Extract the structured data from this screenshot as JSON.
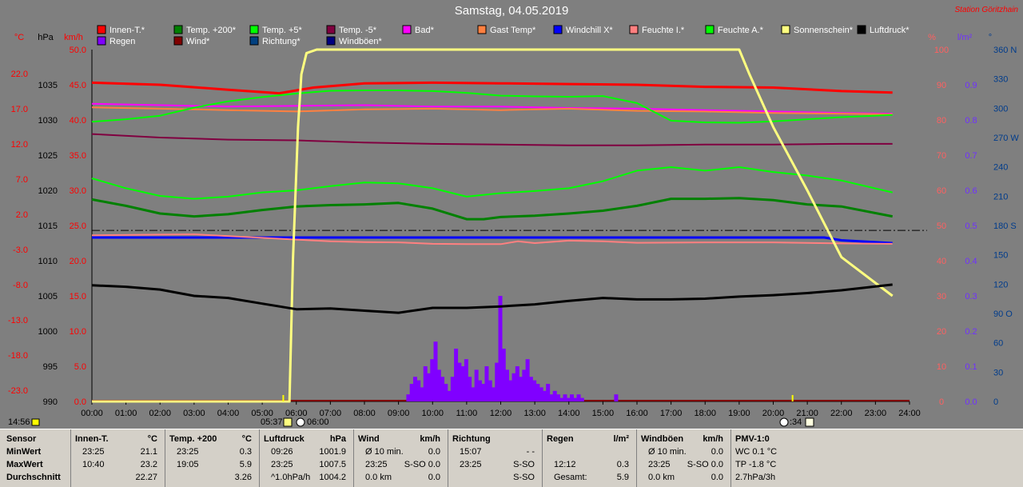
{
  "title": "Samstag, 04.05.2019",
  "station": "Station Göritzhain",
  "start_time": "14:56",
  "chart_data": {
    "type": "line",
    "x_ticks": [
      "00:00",
      "01:00",
      "02:00",
      "03:00",
      "04:00",
      "05:00",
      "06:00",
      "07:00",
      "08:00",
      "09:00",
      "10:00",
      "11:00",
      "12:00",
      "13:00",
      "14:00",
      "15:00",
      "16:00",
      "17:00",
      "18:00",
      "19:00",
      "20:00",
      "21:00",
      "22:00",
      "23:00",
      "24:00"
    ],
    "xlim": [
      0,
      24
    ],
    "grid": false,
    "legend_position": "top",
    "axes_left": [
      {
        "unit": "°C",
        "color": "#ff0000",
        "ticks": [
          "22.0",
          "17.0",
          "12.0",
          "7.0",
          "2.0",
          "-3.0",
          "-8.0",
          "-13.0",
          "-18.0",
          "-23.0"
        ]
      },
      {
        "unit": "hPa",
        "color": "#000000",
        "ticks": [
          "1035",
          "1030",
          "1025",
          "1020",
          "1015",
          "1010",
          "1005",
          "1000",
          "995",
          "990"
        ]
      },
      {
        "unit": "km/h",
        "color": "#ff0000",
        "ticks": [
          "50.0",
          "45.0",
          "40.0",
          "35.0",
          "30.0",
          "25.0",
          "20.0",
          "15.0",
          "10.0",
          "5.0",
          "0.0"
        ]
      }
    ],
    "axes_right": [
      {
        "unit": "%",
        "color": "#ff6060",
        "ticks": [
          "100",
          "90",
          "80",
          "70",
          "60",
          "50",
          "40",
          "30",
          "20",
          "10",
          "0"
        ]
      },
      {
        "unit": "l/m²",
        "color": "#7030ff",
        "ticks": [
          "0.9",
          "0.8",
          "0.7",
          "0.6",
          "0.5",
          "0.4",
          "0.3",
          "0.2",
          "0.1",
          "0.0"
        ]
      },
      {
        "unit": "°",
        "color": "#003c8c",
        "ticks": [
          "360 N",
          "330",
          "300",
          "270 W",
          "240",
          "210",
          "180 S",
          "150",
          "120",
          "90 O",
          "60",
          "30",
          "0"
        ]
      }
    ],
    "legend": [
      {
        "label": "Innen-T.*",
        "color": "#ff0000"
      },
      {
        "label": "Temp. +200*",
        "color": "#008000"
      },
      {
        "label": "Temp. +5*",
        "color": "#00ff00"
      },
      {
        "label": "Temp. -5*",
        "color": "#800040"
      },
      {
        "label": "Bad*",
        "color": "#ff00ff"
      },
      {
        "label": "Gast Temp*",
        "color": "#ff8040"
      },
      {
        "label": "Windchill X*",
        "color": "#0000ff"
      },
      {
        "label": "Feuchte I.*",
        "color": "#ff8080"
      },
      {
        "label": "Feuchte A.*",
        "color": "#00ff00"
      },
      {
        "label": "Sonnenschein*",
        "color": "#ffff80"
      },
      {
        "label": "Luftdruck*",
        "color": "#000000"
      },
      {
        "label": "Regen",
        "color": "#8000ff"
      },
      {
        "label": "Wind*",
        "color": "#800000"
      },
      {
        "label": "Richtung*",
        "color": "#004080"
      },
      {
        "label": "Windböen*",
        "color": "#000080"
      }
    ],
    "series": [
      {
        "name": "Innen-T.*",
        "axis": "°C",
        "color": "#ff0000",
        "x": [
          0,
          2,
          4,
          5.5,
          6.5,
          8,
          10,
          12,
          14,
          16,
          18,
          20,
          22,
          23.5
        ],
        "y": [
          22.3,
          22.0,
          21.3,
          20.8,
          21.6,
          22.2,
          22.3,
          22.2,
          22.1,
          22.0,
          21.7,
          21.6,
          21.1,
          20.9
        ]
      },
      {
        "name": "Temp. +200*",
        "axis": "°C",
        "color": "#008000",
        "x": [
          0,
          1,
          2,
          3,
          4,
          5,
          6,
          7,
          8,
          9,
          10,
          11,
          11.5,
          12,
          13,
          14,
          15,
          16,
          17,
          18,
          19,
          20,
          21,
          22,
          23.5
        ],
        "y": [
          5.7,
          4.8,
          3.7,
          3.3,
          3.6,
          4.2,
          4.7,
          4.9,
          5.0,
          5.2,
          4.4,
          2.9,
          2.9,
          3.2,
          3.4,
          3.7,
          4.1,
          4.8,
          5.8,
          5.8,
          5.9,
          5.6,
          5.0,
          4.7,
          3.3
        ]
      },
      {
        "name": "Temp. +5*",
        "axis": "°C",
        "color": "#00ff00",
        "x": [
          0,
          1,
          2,
          3,
          4,
          5,
          6,
          7,
          8,
          9,
          10,
          11,
          12,
          13,
          14,
          15,
          16,
          17,
          18,
          19,
          20,
          21,
          22,
          23.5
        ],
        "y": [
          8.7,
          7.3,
          6.2,
          5.8,
          6.1,
          6.7,
          7.0,
          7.6,
          8.1,
          8.0,
          7.3,
          6.1,
          6.6,
          6.9,
          7.3,
          8.3,
          9.8,
          10.3,
          9.8,
          10.3,
          9.6,
          9.1,
          8.4,
          6.7
        ]
      },
      {
        "name": "Temp. -5*",
        "axis": "°C",
        "color": "#800040",
        "x": [
          0,
          2,
          4,
          6,
          8,
          10,
          12,
          14,
          16,
          18,
          20,
          22,
          23.5
        ],
        "y": [
          15.0,
          14.5,
          14.2,
          14.1,
          13.8,
          13.6,
          13.5,
          13.4,
          13.4,
          13.5,
          13.5,
          13.6,
          13.6
        ]
      },
      {
        "name": "Bad*",
        "axis": "°C",
        "color": "#ff00ff",
        "x": [
          0,
          2,
          4,
          6,
          8,
          10,
          12,
          14,
          16,
          18,
          20,
          22,
          23.5
        ],
        "y": [
          19.3,
          19.1,
          18.9,
          19.0,
          19.1,
          18.9,
          18.9,
          18.7,
          18.6,
          18.4,
          18.2,
          18.0,
          17.9
        ]
      },
      {
        "name": "Gast Temp*",
        "axis": "°C",
        "color": "#ff8040",
        "x": [
          0,
          2,
          4,
          6,
          8,
          10,
          12,
          14,
          16,
          18,
          20,
          22,
          23.5
        ],
        "y": [
          18.8,
          18.6,
          18.4,
          18.2,
          18.5,
          18.6,
          18.4,
          18.6,
          18.3,
          18.2,
          18.0,
          17.9,
          17.8
        ]
      },
      {
        "name": "Windchill X*",
        "axis": "°C",
        "color": "#0000ff",
        "x": [
          0,
          2,
          4,
          6,
          8,
          10,
          12,
          14,
          16,
          18,
          20,
          21.5,
          22,
          23.5
        ],
        "y": [
          0.3,
          0.3,
          0.3,
          0.3,
          0.3,
          0.3,
          0.3,
          0.3,
          0.3,
          0.3,
          0.3,
          0.3,
          -0.1,
          -0.5
        ]
      },
      {
        "name": "Feuchte I.*",
        "axis": "%",
        "color": "#ff8080",
        "x": [
          0,
          2,
          3,
          5,
          6,
          7,
          8,
          9,
          10,
          11,
          12,
          12.5,
          13,
          14,
          15,
          16,
          18,
          20,
          22,
          23.5
        ],
        "y": [
          47.2,
          47.4,
          47.5,
          46.5,
          46.0,
          45.5,
          45.3,
          45.2,
          44.8,
          44.7,
          44.7,
          45.5,
          45.0,
          45.7,
          45.5,
          45.1,
          45.2,
          45.2,
          44.9,
          44.8
        ]
      },
      {
        "name": "Feuchte A.*",
        "axis": "%",
        "color": "#00ff00",
        "x": [
          0,
          1,
          2,
          3,
          4,
          5,
          6,
          7,
          8,
          9,
          10,
          11,
          12,
          13,
          14,
          15,
          16,
          17,
          18,
          19,
          20,
          21,
          22,
          23.5
        ],
        "y": [
          79.5,
          80.2,
          81.2,
          83.5,
          85.3,
          86.5,
          87.5,
          88.3,
          88.4,
          88.4,
          88.2,
          87.7,
          86.9,
          86.7,
          86.6,
          86.8,
          84.8,
          79.8,
          79.3,
          79.2,
          79.6,
          80.2,
          80.8,
          81.4
        ]
      },
      {
        "name": "Sonnenschein*",
        "axis": "%",
        "color": "#ffff80",
        "x": [
          0,
          5.8,
          5.9,
          6.05,
          6.15,
          6.3,
          6.6,
          7,
          9,
          12,
          14,
          16,
          18,
          19,
          19.3,
          20,
          21,
          22,
          23.5
        ],
        "y": [
          0,
          0,
          40,
          78,
          93,
          99,
          100,
          100,
          100,
          100,
          100,
          100,
          100,
          100,
          93,
          78,
          60,
          41,
          30
        ]
      },
      {
        "name": "Luftdruck*",
        "axis": "hPa",
        "color": "#000000",
        "x": [
          0,
          1,
          2,
          3,
          4,
          5,
          6,
          7,
          8,
          9,
          10,
          11,
          12,
          13,
          14,
          15,
          16,
          17,
          18,
          19,
          20,
          21,
          22,
          23.5
        ],
        "y": [
          1006.5,
          1006.3,
          1005.9,
          1005.0,
          1004.7,
          1003.9,
          1003.1,
          1003.2,
          1002.9,
          1002.6,
          1003.3,
          1003.3,
          1003.5,
          1003.8,
          1004.3,
          1004.7,
          1004.5,
          1004.5,
          1004.6,
          1004.9,
          1005.1,
          1005.4,
          1005.8,
          1006.6
        ]
      }
    ],
    "rain": {
      "name": "Regen",
      "axis": "l/m²",
      "color": "#8000ff",
      "x": [
        9.3,
        9.4,
        9.5,
        9.6,
        9.7,
        9.8,
        9.9,
        10.0,
        10.1,
        10.2,
        10.3,
        10.4,
        10.5,
        10.6,
        10.7,
        10.8,
        10.9,
        11.0,
        11.1,
        11.2,
        11.3,
        11.4,
        11.5,
        11.6,
        11.7,
        11.8,
        11.9,
        12.0,
        12.1,
        12.2,
        12.3,
        12.4,
        12.5,
        12.6,
        12.7,
        12.8,
        12.9,
        13.0,
        13.1,
        13.2,
        13.3,
        13.4,
        13.5,
        13.6,
        13.7,
        13.8,
        13.9,
        14.0,
        14.1,
        14.2,
        14.3,
        14.4,
        15.4
      ],
      "y": [
        0.02,
        0.05,
        0.07,
        0.06,
        0.04,
        0.1,
        0.08,
        0.12,
        0.17,
        0.09,
        0.07,
        0.05,
        0.03,
        0.07,
        0.15,
        0.11,
        0.1,
        0.12,
        0.07,
        0.04,
        0.09,
        0.06,
        0.05,
        0.1,
        0.06,
        0.04,
        0.11,
        0.3,
        0.15,
        0.09,
        0.06,
        0.08,
        0.1,
        0.07,
        0.09,
        0.12,
        0.07,
        0.06,
        0.05,
        0.04,
        0.03,
        0.05,
        0.02,
        0.03,
        0.02,
        0.01,
        0.02,
        0.01,
        0.02,
        0.01,
        0.02,
        0.01,
        0.02
      ]
    },
    "sunrise": "05:37",
    "sunrise_rounded": "06:00",
    "sunset": "20:34",
    "reference_line_percent": 48.6
  },
  "stats": {
    "row_labels": [
      "Sensor",
      "MinWert",
      "MaxWert",
      "Durchschnitt"
    ],
    "columns": [
      {
        "name": "Innen-T.",
        "unit": "°C",
        "rows": [
          [
            "23:25",
            "21.1"
          ],
          [
            "10:40",
            "23.2"
          ],
          [
            "",
            "22.27"
          ]
        ]
      },
      {
        "name": "Temp. +200",
        "unit": "°C",
        "rows": [
          [
            "23:25",
            "0.3"
          ],
          [
            "19:05",
            "5.9"
          ],
          [
            "",
            "3.26"
          ]
        ]
      },
      {
        "name": "Luftdruck",
        "unit": "hPa",
        "rows": [
          [
            "09:26",
            "1001.9"
          ],
          [
            "23:25",
            "1007.5"
          ],
          [
            "^1.0hPa/h",
            "1004.2"
          ]
        ]
      },
      {
        "name": "Wind",
        "unit": "km/h",
        "rows": [
          [
            "Ø 10 min.",
            "0.0"
          ],
          [
            "23:25",
            "S-SO 0.0"
          ],
          [
            "0.0 km",
            "0.0"
          ]
        ]
      },
      {
        "name": "Richtung",
        "unit": "",
        "rows": [
          [
            "15:07",
            "- -"
          ],
          [
            "23:25",
            "S-SO"
          ],
          [
            "",
            "S-SO"
          ]
        ]
      },
      {
        "name": "Regen",
        "unit": "l/m²",
        "rows": [
          [
            "",
            ""
          ],
          [
            "12:12",
            "0.3"
          ],
          [
            "Gesamt:",
            "5.9"
          ]
        ]
      },
      {
        "name": "Windböen",
        "unit": "km/h",
        "rows": [
          [
            "Ø 10 min.",
            "0.0"
          ],
          [
            "23:25",
            "S-SO 0.0"
          ],
          [
            "0.0 km",
            "0.0"
          ]
        ]
      },
      {
        "name": "PMV-1:0",
        "unit": "",
        "rows": [
          [
            "WC 0.1 °C",
            ""
          ],
          [
            "TP -1.8 °C",
            ""
          ],
          [
            "2.7hPa/3h",
            ""
          ]
        ]
      }
    ]
  }
}
